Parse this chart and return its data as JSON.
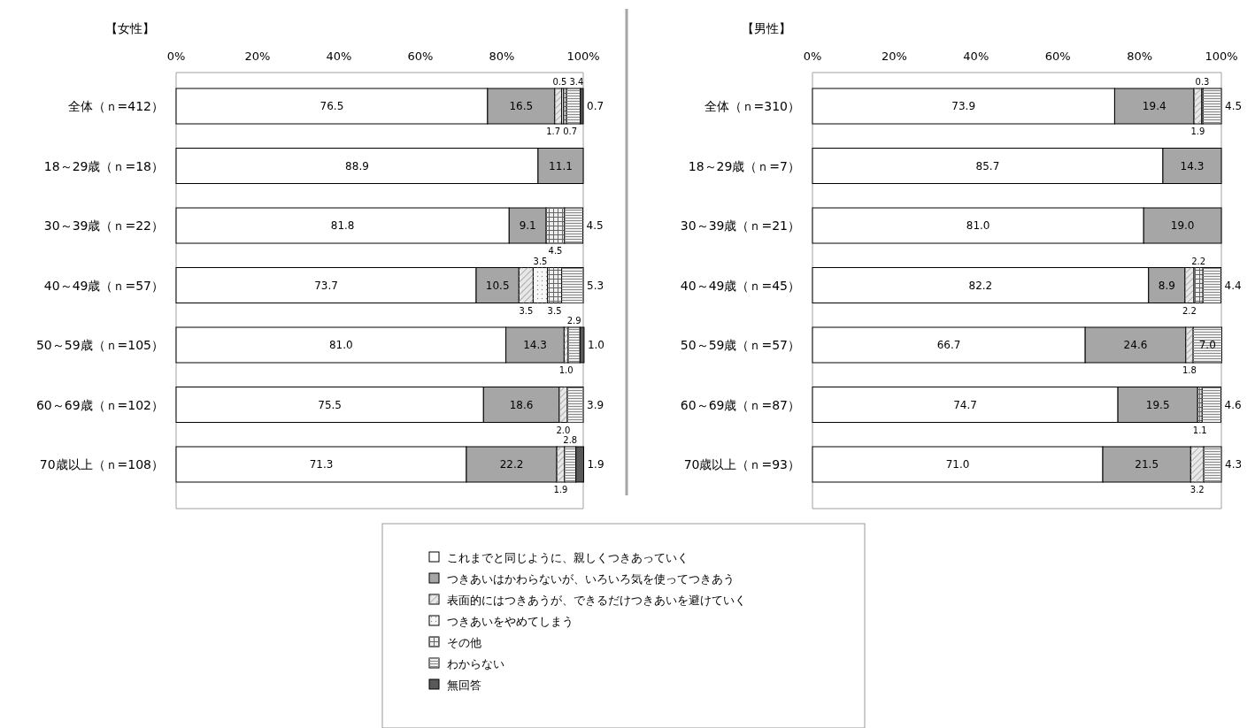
{
  "chart_data": [
    {
      "type": "bar",
      "orientation": "horizontal",
      "stacked": true,
      "title": "【女性】",
      "categories": [
        "全体（ｎ=412）",
        "18～29歳（ｎ=18）",
        "30～39歳（ｎ=22）",
        "40～49歳（ｎ=57）",
        "50～59歳（ｎ=105）",
        "60～69歳（ｎ=102）",
        "70歳以上（ｎ=108）"
      ],
      "xlim": [
        0,
        100
      ],
      "xticks": [
        {
          "value": 0,
          "label": "0%"
        },
        {
          "value": 20,
          "label": "20%"
        },
        {
          "value": 40,
          "label": "40%"
        },
        {
          "value": 60,
          "label": "60%"
        },
        {
          "value": 80,
          "label": "80%"
        },
        {
          "value": 100,
          "label": "100%"
        }
      ],
      "legend": "bottom",
      "series": [
        {
          "name": "これまでと同じように、親しくつきあっていく",
          "color": "#ffffff",
          "values": [
            76.5,
            88.9,
            81.8,
            73.7,
            81.0,
            75.5,
            71.3
          ],
          "value_labels": [
            "76.5",
            "88.9",
            "81.8",
            "73.7",
            "81.0",
            "75.5",
            "71.3"
          ]
        },
        {
          "name": "つきあいはかわらないが、いろいろ気を使ってつきあう",
          "color": "#a6a6a6",
          "values": [
            16.5,
            11.1,
            9.1,
            10.5,
            14.3,
            18.6,
            22.2
          ],
          "value_labels": [
            "16.5",
            "11.1",
            "9.1",
            "10.5",
            "14.3",
            "18.6",
            "22.2"
          ]
        },
        {
          "name": "表面的にはつきあうが、できるだけつきあいを避けていく",
          "color": "#e8e8e8",
          "values": [
            1.7,
            null,
            null,
            3.5,
            1.0,
            2.0,
            1.9
          ],
          "value_labels": [
            "1.7",
            null,
            null,
            "3.5",
            "1.0",
            "2.0",
            "1.9"
          ]
        },
        {
          "name": "つきあいをやめてしまう",
          "color": "#f7f7f7",
          "values": [
            0.5,
            null,
            null,
            3.5,
            null,
            null,
            null
          ],
          "value_labels": [
            "0.5",
            null,
            null,
            "3.5",
            null,
            null,
            null
          ]
        },
        {
          "name": "その他",
          "color": "#eeeeee",
          "values": [
            0.7,
            null,
            4.5,
            3.5,
            null,
            null,
            null
          ],
          "value_labels": [
            "0.7",
            null,
            "4.5",
            "3.5",
            null,
            null,
            null
          ]
        },
        {
          "name": "わからない",
          "color": "#f0f0f0",
          "values": [
            3.4,
            null,
            4.5,
            5.3,
            2.9,
            3.9,
            2.8
          ],
          "value_labels": [
            "3.4",
            null,
            "4.5",
            "5.3",
            "2.9",
            "3.9",
            "2.8"
          ]
        },
        {
          "name": "無回答",
          "color": "#595959",
          "values": [
            0.7,
            null,
            null,
            null,
            1.0,
            null,
            1.9
          ],
          "value_labels": [
            "0.7",
            null,
            null,
            null,
            "1.0",
            null,
            "1.9"
          ]
        }
      ]
    },
    {
      "type": "bar",
      "orientation": "horizontal",
      "stacked": true,
      "title": "【男性】",
      "categories": [
        "全体（ｎ=310）",
        "18～29歳（ｎ=7）",
        "30～39歳（ｎ=21）",
        "40～49歳（ｎ=45）",
        "50～59歳（ｎ=57）",
        "60～69歳（ｎ=87）",
        "70歳以上（ｎ=93）"
      ],
      "xlim": [
        0,
        100
      ],
      "xticks": [
        {
          "value": 0,
          "label": "0%"
        },
        {
          "value": 20,
          "label": "20%"
        },
        {
          "value": 40,
          "label": "40%"
        },
        {
          "value": 60,
          "label": "60%"
        },
        {
          "value": 80,
          "label": "80%"
        },
        {
          "value": 100,
          "label": "100%"
        }
      ],
      "series": [
        {
          "color": "#ffffff",
          "values": [
            73.9,
            85.7,
            81.0,
            82.2,
            66.7,
            74.7,
            71.0
          ],
          "value_labels": [
            "73.9",
            "85.7",
            "81.0",
            "82.2",
            "66.7",
            "74.7",
            "71.0"
          ]
        },
        {
          "color": "#a6a6a6",
          "values": [
            19.4,
            14.3,
            19.0,
            8.9,
            24.6,
            19.5,
            21.5
          ],
          "value_labels": [
            "19.4",
            "14.3",
            "19.0",
            "8.9",
            "24.6",
            "19.5",
            "21.5"
          ]
        },
        {
          "color": "#e8e8e8",
          "values": [
            1.9,
            null,
            null,
            2.2,
            1.8,
            null,
            3.2
          ],
          "value_labels": [
            "1.9",
            null,
            null,
            "2.2",
            "1.8",
            null,
            "3.2"
          ]
        },
        {
          "color": "#eeeeee",
          "values": [
            0.3,
            null,
            null,
            2.2,
            null,
            1.1,
            null
          ],
          "value_labels": [
            "0.3",
            null,
            null,
            "2.2",
            null,
            "1.1",
            null
          ]
        },
        {
          "color": "#f0f0f0",
          "values": [
            4.5,
            null,
            null,
            4.4,
            7.0,
            4.6,
            4.3
          ],
          "value_labels": [
            "4.5",
            null,
            null,
            "4.4",
            "7.0",
            "4.6",
            "4.3"
          ]
        }
      ]
    }
  ]
}
